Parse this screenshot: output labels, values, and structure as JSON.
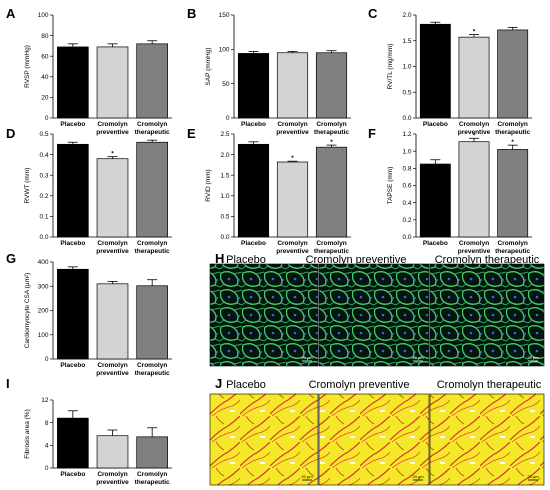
{
  "chart_data": [
    {
      "panel": "A",
      "type": "bar",
      "categories": [
        [
          "Placebo"
        ],
        [
          "Cromolyn",
          "preventive"
        ],
        [
          "Cromolyn",
          "therapeutic"
        ]
      ],
      "values": [
        69,
        69,
        72
      ],
      "errors": [
        3,
        3,
        3
      ],
      "ylabel": "RVSP (mmHg)",
      "ylim": [
        0,
        100
      ],
      "yticks": [
        0,
        20,
        40,
        60,
        80,
        100
      ],
      "sig": [
        false,
        false,
        false
      ]
    },
    {
      "panel": "B",
      "type": "bar",
      "categories": [
        [
          "Placebo"
        ],
        [
          "Cromolyn",
          "preventive"
        ],
        [
          "Cromolyn",
          "therapeutic"
        ]
      ],
      "values": [
        94,
        95,
        95
      ],
      "errors": [
        3,
        2,
        3
      ],
      "ylabel": "SAP (mmHg)",
      "ylim": [
        0,
        150
      ],
      "yticks": [
        0,
        50,
        100,
        150
      ],
      "sig": [
        false,
        false,
        false
      ]
    },
    {
      "panel": "C",
      "type": "bar",
      "categories": [
        [
          "Placebo"
        ],
        [
          "Cromolyn",
          "preventive"
        ],
        [
          "Cromolyn",
          "therapeutic"
        ]
      ],
      "values": [
        1.82,
        1.57,
        1.71
      ],
      "errors": [
        0.04,
        0.05,
        0.05
      ],
      "ylabel": "RV/TL (mg/mm)",
      "ylim": [
        0,
        2.0
      ],
      "yticks": [
        "0.0",
        "0.5",
        "1.0",
        "1.5",
        "2.0"
      ],
      "sig": [
        false,
        true,
        false
      ]
    },
    {
      "panel": "D",
      "type": "bar",
      "categories": [
        [
          "Placebo"
        ],
        [
          "Cromolyn",
          "preventive"
        ],
        [
          "Cromolyn",
          "therapeutic"
        ]
      ],
      "values": [
        0.45,
        0.38,
        0.46
      ],
      "errors": [
        0.01,
        0.01,
        0.01
      ],
      "ylabel": "RVWT (mm)",
      "ylim": [
        0,
        0.5
      ],
      "yticks": [
        "0.0",
        "0.1",
        "0.2",
        "0.3",
        "0.4",
        "0.5"
      ],
      "sig": [
        false,
        true,
        false
      ]
    },
    {
      "panel": "E",
      "type": "bar",
      "categories": [
        [
          "Placebo"
        ],
        [
          "Cromolyn",
          "preventive"
        ],
        [
          "Cromolyn",
          "therapeutic"
        ]
      ],
      "values": [
        2.25,
        1.82,
        2.18
      ],
      "errors": [
        0.06,
        0.02,
        0.05
      ],
      "ylabel": "RVID (mm)",
      "ylim": [
        0,
        2.5
      ],
      "yticks": [
        "0.0",
        "0.5",
        "1.0",
        "1.5",
        "2.0",
        "2.5"
      ],
      "sig": [
        false,
        true,
        true
      ]
    },
    {
      "panel": "F",
      "type": "bar",
      "categories": [
        [
          "Placebo"
        ],
        [
          "Cromolyn",
          "preventive"
        ],
        [
          "Cromolyn",
          "therapeutic"
        ]
      ],
      "values": [
        0.85,
        1.11,
        1.02
      ],
      "errors": [
        0.05,
        0.04,
        0.05
      ],
      "ylabel": "TAPSE (mm)",
      "ylim": [
        0,
        1.2
      ],
      "yticks": [
        "0.0",
        "0.2",
        "0.4",
        "0.6",
        "0.8",
        "1.0",
        "1.2"
      ],
      "sig": [
        false,
        true,
        true
      ]
    },
    {
      "panel": "G",
      "type": "bar",
      "categories": [
        [
          "Placebo"
        ],
        [
          "Cromolyn",
          "preventive"
        ],
        [
          "Cromolyn",
          "therapeutic"
        ]
      ],
      "values": [
        370,
        310,
        302
      ],
      "errors": [
        10,
        10,
        25
      ],
      "ylabel": "Cardiomyocyte CSA (µm²)",
      "ylim": [
        0,
        400
      ],
      "yticks": [
        0,
        100,
        200,
        300,
        400
      ],
      "sig": [
        false,
        false,
        false
      ]
    },
    {
      "panel": "I",
      "type": "bar",
      "categories": [
        [
          "Placebo"
        ],
        [
          "Cromolyn",
          "preventive"
        ],
        [
          "Cromolyn",
          "therapeutic"
        ]
      ],
      "values": [
        8.8,
        5.7,
        5.5
      ],
      "errors": [
        1.3,
        1.0,
        1.6
      ],
      "ylabel": "Fibrosis area (%)",
      "ylim": [
        0,
        12
      ],
      "yticks": [
        0,
        4,
        8,
        12
      ],
      "sig": [
        false,
        false,
        false
      ]
    }
  ],
  "bar_colors": [
    "#000000",
    "#d3d3d3",
    "#808080"
  ],
  "significance_marker": "*",
  "images": {
    "H": {
      "label": "H",
      "titles": [
        "Placebo",
        "Cromolyn preventive",
        "Cromolyn therapeutic"
      ],
      "scalebar": "20 µm"
    },
    "J": {
      "label": "J",
      "titles": [
        "Placebo",
        "Cromolyn preventive",
        "Cromolyn therapeutic"
      ],
      "scalebar": "20 µm"
    }
  }
}
